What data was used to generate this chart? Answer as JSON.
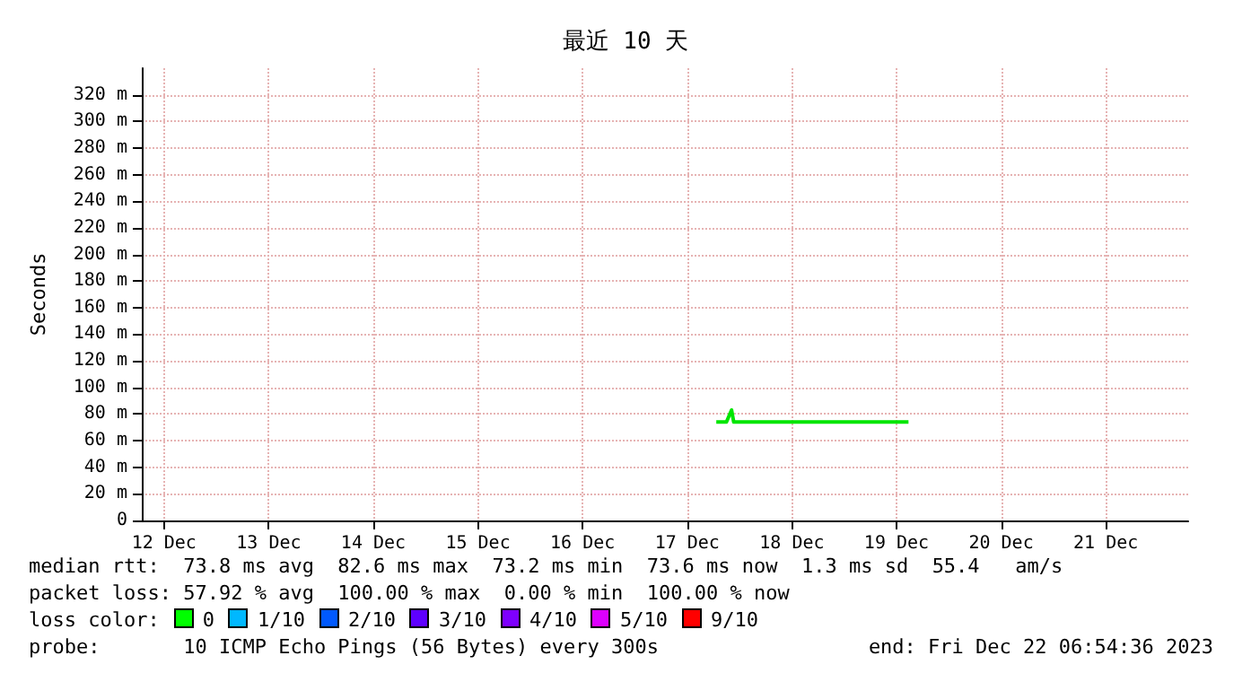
{
  "chart_data": {
    "type": "line",
    "title": "最近 10 天",
    "ylabel": "Seconds",
    "x": [
      "2023-12-17T18:40",
      "2023-12-17T21:00",
      "2023-12-17T22:10",
      "2023-12-17T22:40",
      "2023-12-18T06:00",
      "2023-12-18T12:00",
      "2023-12-18T18:00",
      "2023-12-19T00:00",
      "2023-12-19T06:00",
      "2023-12-19T14:45"
    ],
    "series": [
      {
        "color": "#00e600",
        "values": [
          74,
          74,
          83,
          74,
          74,
          74,
          74,
          74,
          74,
          74
        ]
      }
    ],
    "xlim": [
      "2023-12-12T06:54",
      "2023-12-22T06:54"
    ],
    "xticks": [
      {
        "value": "2023-12-12T12:00",
        "label": "12 Dec"
      },
      {
        "value": "2023-12-13T12:00",
        "label": "13 Dec"
      },
      {
        "value": "2023-12-14T12:00",
        "label": "14 Dec"
      },
      {
        "value": "2023-12-15T12:00",
        "label": "15 Dec"
      },
      {
        "value": "2023-12-16T12:00",
        "label": "16 Dec"
      },
      {
        "value": "2023-12-17T12:00",
        "label": "17 Dec"
      },
      {
        "value": "2023-12-18T12:00",
        "label": "18 Dec"
      },
      {
        "value": "2023-12-19T12:00",
        "label": "19 Dec"
      },
      {
        "value": "2023-12-20T12:00",
        "label": "20 Dec"
      },
      {
        "value": "2023-12-21T12:00",
        "label": "21 Dec"
      }
    ],
    "ylim": [
      0,
      340
    ],
    "yticks": [
      0,
      {
        "value": 20,
        "label": "20 m"
      },
      {
        "value": 40,
        "label": "40 m"
      },
      {
        "value": 60,
        "label": "60 m"
      },
      {
        "value": 80,
        "label": "80 m"
      },
      {
        "value": 100,
        "label": "100 m"
      },
      {
        "value": 120,
        "label": "120 m"
      },
      {
        "value": 140,
        "label": "140 m"
      },
      {
        "value": 160,
        "label": "160 m"
      },
      {
        "value": 180,
        "label": "180 m"
      },
      {
        "value": 200,
        "label": "200 m"
      },
      {
        "value": 220,
        "label": "220 m"
      },
      {
        "value": 240,
        "label": "240 m"
      },
      {
        "value": 260,
        "label": "260 m"
      },
      {
        "value": 280,
        "label": "280 m"
      },
      {
        "value": 300,
        "label": "300 m"
      },
      {
        "value": 320,
        "label": "320 m"
      }
    ],
    "grid": true,
    "marker": "none",
    "line_style": "solid",
    "annotations": [
      "median rtt:  73.8 ms avg  82.6 ms max  73.2 ms min  73.6 ms now  1.3 ms sd  55.4   am/s",
      "packet loss: 57.92 % avg  100.00 % max  0.00 % min  100.00 % now",
      "loss color:",
      "0",
      "1/10",
      "2/10",
      "3/10",
      "4/10",
      "5/10",
      "9/10",
      "probe:       10 ICMP Echo Pings (56 Bytes) every 300s",
      "end: Fri Dec 22 06:54:36 2023"
    ]
  }
}
